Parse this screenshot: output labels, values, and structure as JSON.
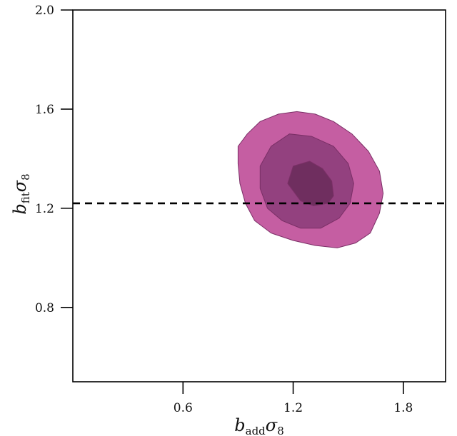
{
  "chart_data": {
    "type": "contour",
    "xlabel": {
      "main": "b",
      "sub": "add",
      "sym": "σ",
      "num": "8"
    },
    "ylabel": {
      "main": "b",
      "sub": "fit",
      "sym": "σ",
      "num": "8"
    },
    "xlim": [
      0.0,
      2.03
    ],
    "ylim": [
      0.5,
      2.0
    ],
    "xticks": [
      {
        "value": 0.6,
        "label": "0.6"
      },
      {
        "value": 1.2,
        "label": "1.2"
      },
      {
        "value": 1.8,
        "label": "1.8"
      }
    ],
    "yticks": [
      {
        "value": 0.8,
        "label": "0.8"
      },
      {
        "value": 1.2,
        "label": "1.2"
      },
      {
        "value": 1.6,
        "label": "1.6"
      },
      {
        "value": 2.0,
        "label": "2.0"
      }
    ],
    "reference_line": {
      "orientation": "horizontal",
      "y": 1.22,
      "style": "dashed",
      "color": "#000000"
    },
    "contours": [
      {
        "level": "outer",
        "color": "#c0509a",
        "points": [
          [
            0.9,
            1.45
          ],
          [
            0.95,
            1.5
          ],
          [
            1.02,
            1.55
          ],
          [
            1.12,
            1.58
          ],
          [
            1.22,
            1.59
          ],
          [
            1.32,
            1.58
          ],
          [
            1.42,
            1.55
          ],
          [
            1.52,
            1.5
          ],
          [
            1.61,
            1.43
          ],
          [
            1.67,
            1.35
          ],
          [
            1.69,
            1.26
          ],
          [
            1.67,
            1.18
          ],
          [
            1.62,
            1.1
          ],
          [
            1.54,
            1.06
          ],
          [
            1.44,
            1.04
          ],
          [
            1.32,
            1.05
          ],
          [
            1.2,
            1.07
          ],
          [
            1.08,
            1.1
          ],
          [
            0.99,
            1.15
          ],
          [
            0.94,
            1.22
          ],
          [
            0.91,
            1.3
          ],
          [
            0.9,
            1.38
          ]
        ]
      },
      {
        "level": "middle",
        "color": "#8e3f7c",
        "points": [
          [
            1.02,
            1.37
          ],
          [
            1.08,
            1.45
          ],
          [
            1.18,
            1.5
          ],
          [
            1.3,
            1.49
          ],
          [
            1.42,
            1.45
          ],
          [
            1.5,
            1.38
          ],
          [
            1.53,
            1.3
          ],
          [
            1.51,
            1.22
          ],
          [
            1.45,
            1.16
          ],
          [
            1.35,
            1.12
          ],
          [
            1.24,
            1.12
          ],
          [
            1.14,
            1.15
          ],
          [
            1.06,
            1.2
          ],
          [
            1.02,
            1.28
          ]
        ]
      },
      {
        "level": "inner",
        "color": "#6b2c5c",
        "points": [
          [
            1.17,
            1.3
          ],
          [
            1.2,
            1.37
          ],
          [
            1.29,
            1.39
          ],
          [
            1.36,
            1.36
          ],
          [
            1.41,
            1.31
          ],
          [
            1.42,
            1.25
          ],
          [
            1.39,
            1.22
          ],
          [
            1.31,
            1.21
          ],
          [
            1.24,
            1.23
          ]
        ]
      }
    ]
  }
}
